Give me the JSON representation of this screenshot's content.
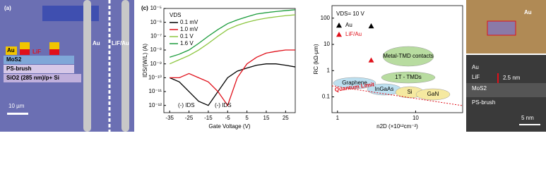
{
  "panel_a": {
    "label": "(a)",
    "electrode_left": "Au",
    "electrode_right": "LiF/Au",
    "stack": {
      "au": "Au",
      "lif": "LiF",
      "mos2": "MoS2",
      "brush": "PS-brush",
      "substrate": "SiO2 (285 nm)/p+ Si"
    },
    "scale_bar": "10 µm"
  },
  "images": {
    "optical_label": "Au",
    "tem": {
      "au": "Au",
      "lif": "LiF",
      "thickness": "2.5 nm",
      "mos2": "MoS2",
      "brush": "PS-brush",
      "scale_bar": "5 nm"
    }
  },
  "chart_data": [
    {
      "type": "line",
      "label": "(c)",
      "ylabel": "IDS/(W/L) (A)",
      "xlabel": "Gate Voltage (V)",
      "legend_title": "VDS",
      "log_y": true,
      "x": [
        -35,
        -30,
        -25,
        -20,
        -15,
        -10,
        -5,
        0,
        5,
        10,
        15,
        20,
        25,
        30
      ],
      "series": [
        {
          "name": "0.1 mV",
          "color": "#000000",
          "values": [
            1e-10,
            5e-11,
            1e-11,
            2e-12,
            1e-12,
            1e-11,
            1e-10,
            3e-10,
            5e-10,
            8e-10,
            1e-09,
            1e-09,
            8e-10,
            6e-10
          ]
        },
        {
          "name": "1.0 mV",
          "color": "#e0101a",
          "values": [
            1e-10,
            1e-10,
            2e-10,
            1e-10,
            5e-11,
            1e-11,
            1e-12,
            1e-10,
            1e-09,
            3e-09,
            6e-09,
            8e-09,
            1e-08,
            1e-08
          ]
        },
        {
          "name": "0.1 V",
          "color": "#8cc63f",
          "values": [
            1e-09,
            2e-09,
            4e-09,
            1e-08,
            3e-08,
            1e-07,
            3e-07,
            6e-07,
            1e-06,
            1.5e-06,
            2e-06,
            2.5e-06,
            3e-06,
            3.5e-06
          ]
        },
        {
          "name": "1.6 V",
          "color": "#1a9b3a",
          "values": [
            3e-09,
            5e-09,
            1e-08,
            3e-08,
            1e-07,
            3e-07,
            8e-07,
            1.5e-06,
            2.5e-06,
            4e-06,
            5e-06,
            6e-06,
            7e-06,
            8e-06
          ]
        }
      ],
      "annotations": [
        "(-) IDS",
        "(-) IDS"
      ],
      "xlim": [
        -38,
        30
      ],
      "xticks": [
        -35,
        -25,
        -15,
        -5,
        5,
        15,
        25
      ],
      "ylim": [
        3e-13,
        1e-05
      ],
      "yticks": [
        {
          "value": 1e-05,
          "label": "10⁻⁵"
        },
        {
          "value": 1e-06,
          "label": "10⁻⁶"
        },
        {
          "value": 1e-07,
          "label": "10⁻⁷"
        },
        {
          "value": 1e-08,
          "label": "10⁻⁸"
        },
        {
          "value": 1e-09,
          "label": "10⁻⁹"
        },
        {
          "value": 1e-10,
          "label": "10⁻¹⁰"
        },
        {
          "value": 1e-11,
          "label": "10⁻¹¹"
        },
        {
          "value": 1e-12,
          "label": "10⁻¹²"
        }
      ]
    },
    {
      "type": "scatter",
      "title": "VDS= 10 V",
      "ylabel": "RC (kΩ-µm)",
      "xlabel": "n2D (×10¹²cm⁻²)",
      "log_x": true,
      "log_y": true,
      "series": [
        {
          "name": "Au",
          "color": "#000000",
          "x": [
            2.7
          ],
          "values": [
            50
          ]
        },
        {
          "name": "LiF/Au",
          "color": "#e0101a",
          "x": [
            2.7
          ],
          "values": [
            2.5
          ]
        }
      ],
      "annotations": [
        "Metal-TMD contacts",
        "1T - TMDs",
        "Graphene",
        "InGaAs",
        "Si",
        "GaN",
        "Quantum Limit"
      ],
      "xlim": [
        0.85,
        40
      ],
      "xticks": [
        1,
        10
      ],
      "ylim": [
        0.025,
        300
      ],
      "yticks": [
        0.1,
        1,
        10,
        100
      ]
    }
  ]
}
